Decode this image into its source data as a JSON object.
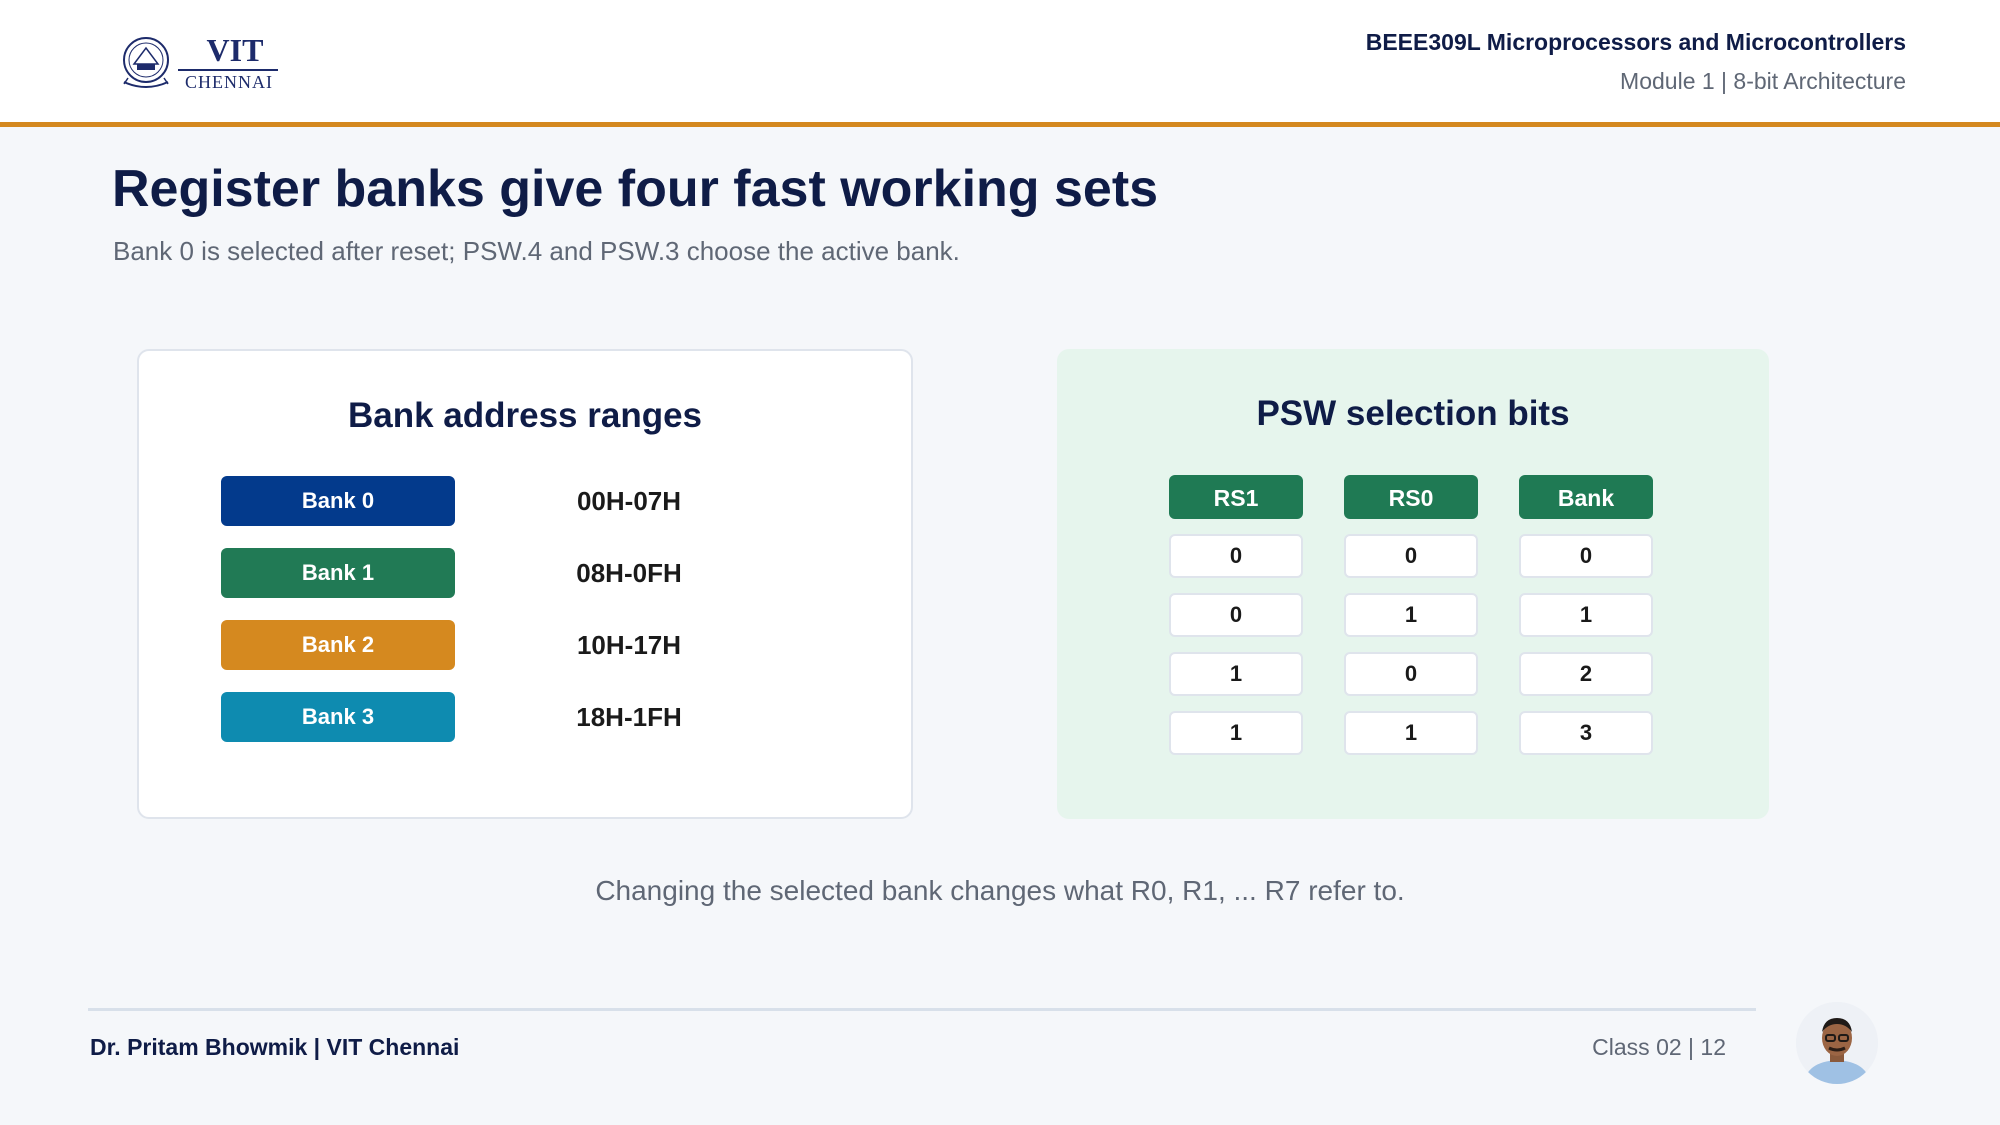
{
  "header": {
    "logo": {
      "wordmark": "VIT",
      "city": "CHENNAI"
    },
    "course_title": "BEEE309L Microprocessors and Microcontrollers",
    "module_line": "Module 1 | 8-bit Architecture",
    "accent_color": "#d4881f"
  },
  "slide": {
    "title": "Register banks give four fast working sets",
    "subtitle": "Bank 0 is selected after reset; PSW.4 and PSW.3 choose the active bank."
  },
  "banks_panel": {
    "title": "Bank address ranges",
    "rows": [
      {
        "label": "Bank 0",
        "range": "00H-07H",
        "color": "#033a8c"
      },
      {
        "label": "Bank 1",
        "range": "08H-0FH",
        "color": "#217a55"
      },
      {
        "label": "Bank 2",
        "range": "10H-17H",
        "color": "#d5891f"
      },
      {
        "label": "Bank 3",
        "range": "18H-1FH",
        "color": "#0e8bb0"
      }
    ]
  },
  "psw_panel": {
    "title": "PSW selection bits",
    "headers": [
      "RS1",
      "RS0",
      "Bank"
    ],
    "rows": [
      [
        "0",
        "0",
        "0"
      ],
      [
        "0",
        "1",
        "1"
      ],
      [
        "1",
        "0",
        "2"
      ],
      [
        "1",
        "1",
        "3"
      ]
    ],
    "header_color": "#1f7a54"
  },
  "note": "Changing the selected bank changes what R0, R1, ... R7 refer to.",
  "footer": {
    "author": "Dr. Pritam Bhowmik | VIT Chennai",
    "class_page": "Class 02  |  12"
  }
}
